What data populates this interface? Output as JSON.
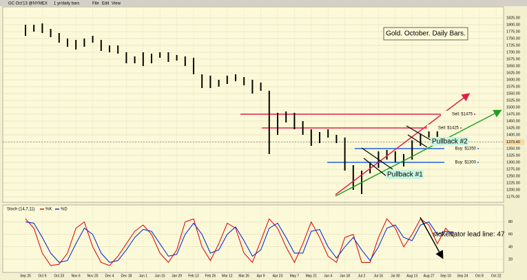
{
  "toolbar": {
    "symbol": "GC Oct'13 @NYMEX",
    "period": "1 yr/daily bars",
    "menu": [
      "File",
      "Edit",
      "View"
    ]
  },
  "chart_data": [
    {
      "type": "range",
      "title": "Gold. October. Daily Bars.",
      "categories": [
        "Sep 25",
        null,
        "Oct 9",
        null,
        "Oct 23",
        null,
        "Nov 6",
        null,
        "Nov 20",
        null,
        "Dec 4",
        null,
        "Dec 18",
        null,
        "Jan 1",
        null,
        "Jan 15",
        null,
        "Jan 29",
        null,
        "Feb 12",
        null,
        "Feb 26",
        null,
        "Mar 12",
        null,
        "Mar 26",
        null,
        "Apr 9",
        null,
        "Apr 23",
        null,
        "May 7",
        null,
        "May 21",
        null,
        "Jun 4",
        null,
        "Jun 18",
        null,
        "Jul 2",
        null,
        "Jul 16",
        null,
        "Jul 30",
        null,
        "Aug 13",
        null,
        "Aug 27",
        null,
        "Sep 10",
        null,
        "Sep 24",
        null,
        "Oct 8",
        null,
        "Oct 22"
      ],
      "high": [
        1800,
        1800,
        1805,
        1785,
        1770,
        1750,
        1745,
        1750,
        1760,
        1745,
        1725,
        1725,
        1700,
        1685,
        1700,
        1695,
        1700,
        1700,
        1690,
        1685,
        1680,
        1620,
        1615,
        1600,
        1615,
        1620,
        1610,
        1600,
        1590,
        1560,
        1480,
        1485,
        1480,
        1450,
        1420,
        1410,
        1420,
        1400,
        1390,
        1290,
        1270,
        1300,
        1340,
        1345,
        1340,
        1330,
        1380,
        1405,
        1435,
        1420,
        1390,
        1380,
        null,
        null,
        null,
        null,
        null
      ],
      "low": [
        1760,
        1775,
        1770,
        1755,
        1735,
        1720,
        1710,
        1720,
        1735,
        1705,
        1700,
        1695,
        1660,
        1660,
        1650,
        1660,
        1680,
        1665,
        1670,
        1650,
        1620,
        1570,
        1570,
        1575,
        1585,
        1595,
        1580,
        1550,
        1560,
        1330,
        1400,
        1445,
        1420,
        1400,
        1360,
        1370,
        1390,
        1370,
        1270,
        1200,
        1185,
        1260,
        1280,
        1310,
        1300,
        1285,
        1310,
        1360,
        1390,
        1380,
        1350,
        1360,
        null,
        null,
        null,
        null,
        null
      ],
      "color": "#000000",
      "ylim": [
        1160,
        1860
      ],
      "yticks": [
        {
          "value": 1175,
          "label": "1175.00"
        },
        {
          "value": 1200,
          "label": "1200.00"
        },
        {
          "value": 1225,
          "label": "1225.00"
        },
        {
          "value": 1250,
          "label": "1250.00"
        },
        {
          "value": 1275,
          "label": "1275.00"
        },
        {
          "value": 1300,
          "label": "1300.00"
        },
        {
          "value": 1325,
          "label": "1325.00"
        },
        {
          "value": 1350,
          "label": "1350.00"
        },
        {
          "value": 1375,
          "label": "1375.00"
        },
        {
          "value": 1400,
          "label": "1400.00"
        },
        {
          "value": 1425,
          "label": "1425.00"
        },
        {
          "value": 1450,
          "label": "1450.00"
        },
        {
          "value": 1475,
          "label": "1475.00"
        },
        {
          "value": 1500,
          "label": "1500.00"
        },
        {
          "value": 1525,
          "label": "1525.00"
        },
        {
          "value": 1550,
          "label": "1550.00"
        },
        {
          "value": 1575,
          "label": "1575.00"
        },
        {
          "value": 1600,
          "label": "1600.00"
        },
        {
          "value": 1625,
          "label": "1625.00"
        },
        {
          "value": 1650,
          "label": "1650.00"
        },
        {
          "value": 1675,
          "label": "1675.00"
        },
        {
          "value": 1700,
          "label": "1700.00"
        },
        {
          "value": 1725,
          "label": "1725.00"
        },
        {
          "value": 1750,
          "label": "1750.00"
        },
        {
          "value": 1775,
          "label": "1775.00"
        },
        {
          "value": 1800,
          "label": "1800.00"
        },
        {
          "value": 1825,
          "label": "1825.00"
        }
      ],
      "grid": true,
      "last_price": {
        "value": 1373.4,
        "label": "1373.40"
      },
      "levels": [
        {
          "label": "Sell: $1475",
          "value": 1475,
          "color": "#e0204a"
        },
        {
          "label": "Sell: $1425",
          "value": 1425,
          "color": "#e0204a"
        },
        {
          "label": "Buy: $1350",
          "value": 1350,
          "color": "#2060e0"
        },
        {
          "label": "Buy: $1300",
          "value": 1300,
          "color": "#2060e0"
        }
      ],
      "annotations": [
        "Pullback #1",
        "Pullback #2"
      ]
    },
    {
      "type": "line",
      "title": "Stoch (14,7,11)",
      "series": [
        {
          "name": "%K",
          "color": "#e01010",
          "values": [
            85,
            70,
            30,
            10,
            12,
            30,
            70,
            80,
            40,
            15,
            10,
            25,
            45,
            65,
            75,
            60,
            30,
            15,
            35,
            80,
            85,
            40,
            18,
            45,
            78,
            70,
            30,
            15,
            50,
            85,
            70,
            40,
            15,
            45,
            80,
            55,
            25,
            15,
            55,
            60,
            15,
            15,
            55,
            85,
            70,
            40,
            60,
            85,
            75,
            45,
            70,
            55,
            null,
            null,
            null,
            null,
            null
          ]
        },
        {
          "name": "%D",
          "color": "#1030d0",
          "values": [
            80,
            78,
            55,
            30,
            15,
            18,
            45,
            70,
            60,
            30,
            15,
            18,
            35,
            55,
            68,
            65,
            45,
            25,
            28,
            60,
            78,
            60,
            30,
            35,
            60,
            72,
            50,
            25,
            35,
            70,
            78,
            55,
            30,
            30,
            65,
            68,
            40,
            22,
            40,
            55,
            35,
            18,
            40,
            70,
            75,
            55,
            50,
            75,
            80,
            60,
            65,
            62,
            null,
            null,
            null,
            null,
            null
          ]
        }
      ],
      "ylim": [
        0,
        105
      ],
      "yticks": [
        20,
        40,
        60,
        80
      ],
      "grid": true,
      "annotations": [
        "stokeillator lead line: 47"
      ]
    }
  ]
}
